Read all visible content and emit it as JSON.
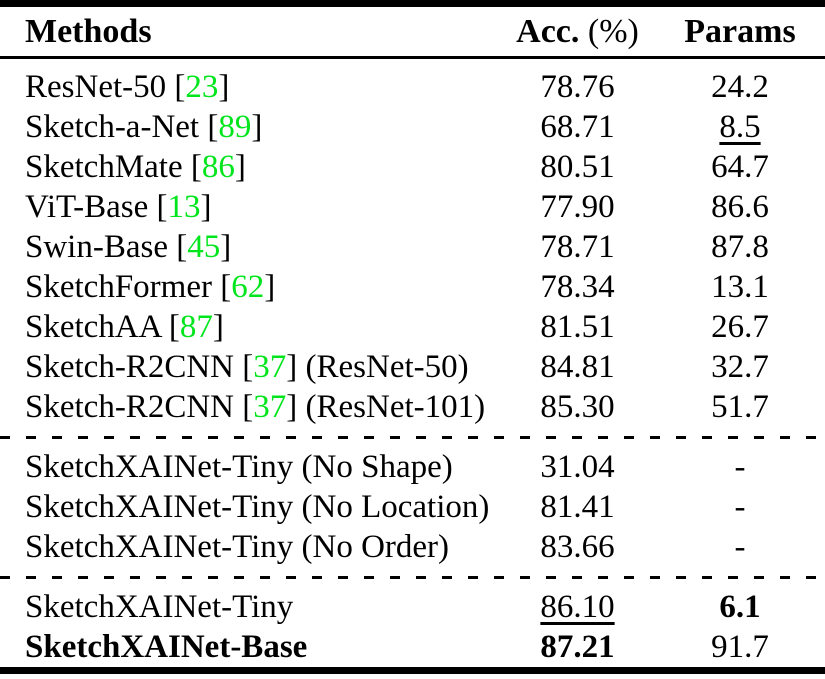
{
  "table": {
    "colors": {
      "citation_green": "#00E51C",
      "text": "#000000",
      "background": "#ffffff"
    },
    "header": {
      "methods": "Methods",
      "acc": "Acc.",
      "acc_unit": "(%)",
      "params": "Params"
    },
    "sections": [
      {
        "rows": [
          {
            "label": "ResNet-50",
            "cite": "23",
            "suffix": "",
            "acc": "78.76",
            "params": "24.2"
          },
          {
            "label": "Sketch-a-Net",
            "cite": "89",
            "suffix": "",
            "acc": "68.71",
            "params": "8.5",
            "params_underline": true
          },
          {
            "label": "SketchMate",
            "cite": "86",
            "suffix": "",
            "acc": "80.51",
            "params": "64.7"
          },
          {
            "label": "ViT-Base",
            "cite": "13",
            "suffix": "",
            "acc": "77.90",
            "params": "86.6"
          },
          {
            "label": "Swin-Base",
            "cite": "45",
            "suffix": "",
            "acc": "78.71",
            "params": "87.8"
          },
          {
            "label": "SketchFormer",
            "cite": "62",
            "suffix": "",
            "acc": "78.34",
            "params": "13.1"
          },
          {
            "label": "SketchAA",
            "cite": "87",
            "suffix": "",
            "acc": "81.51",
            "params": "26.7"
          },
          {
            "label": "Sketch-R2CNN",
            "cite": "37",
            "suffix": "(ResNet-50)",
            "acc": "84.81",
            "params": "32.7"
          },
          {
            "label": "Sketch-R2CNN",
            "cite": "37",
            "suffix": "(ResNet-101)",
            "acc": "85.30",
            "params": "51.7"
          }
        ]
      },
      {
        "rows": [
          {
            "label": "SketchXAINet-Tiny (No Shape)",
            "cite": null,
            "suffix": "",
            "acc": "31.04",
            "params": "-"
          },
          {
            "label": "SketchXAINet-Tiny (No Location)",
            "cite": null,
            "suffix": "",
            "acc": "81.41",
            "params": "-"
          },
          {
            "label": "SketchXAINet-Tiny (No Order)",
            "cite": null,
            "suffix": "",
            "acc": "83.66",
            "params": "-"
          }
        ]
      },
      {
        "rows": [
          {
            "label": "SketchXAINet-Tiny",
            "cite": null,
            "suffix": "",
            "acc": "86.10",
            "acc_underline": true,
            "params": "6.1",
            "params_bold": true
          },
          {
            "label": "SketchXAINet-Base",
            "cite": null,
            "suffix": "",
            "label_bold": true,
            "acc": "87.21",
            "acc_bold": true,
            "params": "91.7"
          }
        ]
      }
    ]
  }
}
